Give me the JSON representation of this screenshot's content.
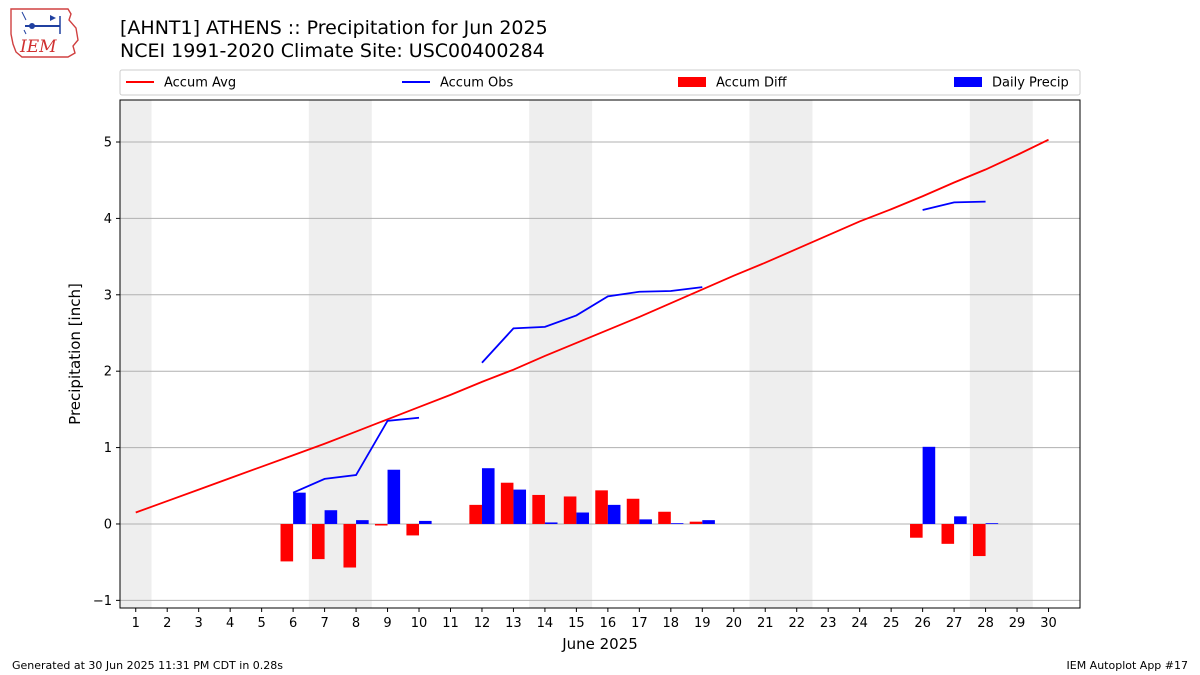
{
  "header": {
    "title_line1": "[AHNT1] ATHENS :: Precipitation for Jun 2025",
    "title_line2": "NCEI 1991-2020 Climate Site: USC00400284",
    "logo_text": "IEM"
  },
  "footer": {
    "generated": "Generated at 30 Jun 2025 11:31 PM CDT in 0.28s",
    "app": "IEM Autoplot App #17"
  },
  "colors": {
    "avg": "#ff0000",
    "obs": "#0000ff",
    "diff": "#ff0000",
    "daily": "#0000ff",
    "weekend_band": "#eeeeee",
    "grid": "#b0b0b0"
  },
  "chart_data": {
    "type": "bar",
    "xlabel": "June 2025",
    "ylabel": "Precipitation [inch]",
    "xlim": [
      0.5,
      31
    ],
    "ylim": [
      -1.1,
      5.55
    ],
    "yticks": [
      -1,
      0,
      1,
      2,
      3,
      4,
      5
    ],
    "x": [
      1,
      2,
      3,
      4,
      5,
      6,
      7,
      8,
      9,
      10,
      11,
      12,
      13,
      14,
      15,
      16,
      17,
      18,
      19,
      20,
      21,
      22,
      23,
      24,
      25,
      26,
      27,
      28,
      29,
      30
    ],
    "grid": "horizontal",
    "legend_placement": "top, above plot",
    "weekend_bands": [
      [
        0.5,
        1.5
      ],
      [
        6.5,
        8.5
      ],
      [
        13.5,
        15.5
      ],
      [
        20.5,
        22.5
      ],
      [
        27.5,
        29.5
      ]
    ],
    "series": [
      {
        "name": "Accum Avg",
        "kind": "line",
        "values": [
          0.15,
          0.3,
          0.45,
          0.6,
          0.75,
          0.9,
          1.05,
          1.21,
          1.37,
          1.53,
          1.69,
          1.86,
          2.02,
          2.2,
          2.37,
          2.54,
          2.71,
          2.89,
          3.07,
          3.25,
          3.42,
          3.6,
          3.78,
          3.96,
          4.12,
          4.29,
          4.47,
          4.64,
          4.83,
          5.03
        ]
      },
      {
        "name": "Accum Obs",
        "kind": "line",
        "values": [
          null,
          null,
          null,
          null,
          null,
          0.41,
          0.59,
          0.64,
          1.35,
          1.39,
          null,
          2.11,
          2.56,
          2.58,
          2.73,
          2.98,
          3.04,
          3.05,
          3.1,
          null,
          null,
          null,
          null,
          null,
          null,
          4.11,
          4.21,
          4.22,
          null,
          null
        ]
      },
      {
        "name": "Accum Diff",
        "kind": "bar",
        "values": [
          null,
          null,
          null,
          null,
          null,
          -0.49,
          -0.46,
          -0.57,
          -0.02,
          -0.15,
          null,
          0.25,
          0.54,
          0.38,
          0.36,
          0.44,
          0.33,
          0.16,
          0.03,
          null,
          null,
          null,
          null,
          null,
          null,
          -0.18,
          -0.26,
          -0.42,
          null,
          null
        ]
      },
      {
        "name": "Daily Precip",
        "kind": "bar",
        "values": [
          null,
          null,
          null,
          null,
          null,
          0.41,
          0.18,
          0.05,
          0.71,
          0.04,
          null,
          0.73,
          0.45,
          0.02,
          0.15,
          0.25,
          0.06,
          0.01,
          0.05,
          null,
          null,
          null,
          null,
          null,
          null,
          1.01,
          0.1,
          0.01,
          null,
          null
        ]
      }
    ]
  }
}
